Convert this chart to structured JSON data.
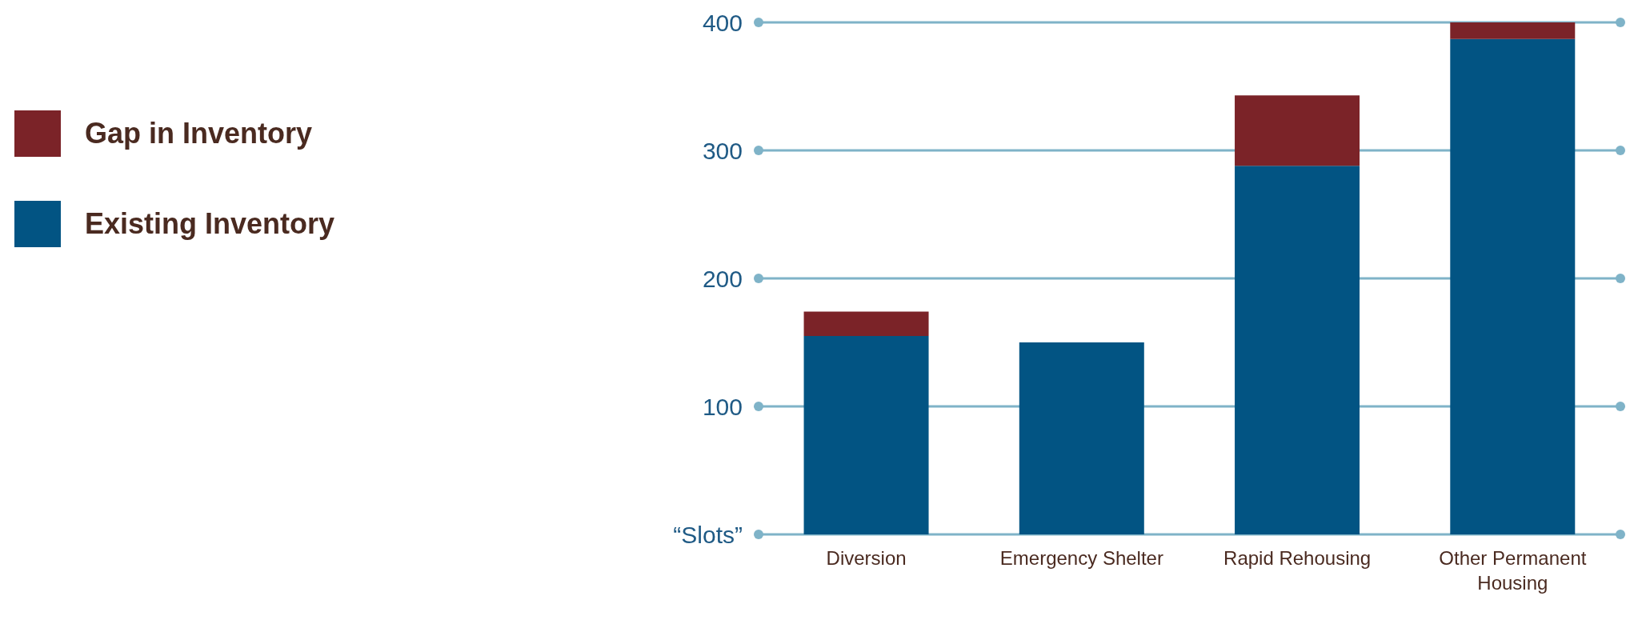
{
  "chart_data": {
    "type": "bar",
    "stacked": true,
    "categories": [
      "Diversion",
      "Emergency Shelter",
      "Rapid Rehousing",
      "Other Permanent Housing"
    ],
    "series": [
      {
        "name": "Existing Inventory",
        "color": "#025483",
        "values": [
          155,
          150,
          288,
          387
        ]
      },
      {
        "name": "Gap in Inventory",
        "color": "#7b2328",
        "values": [
          19,
          0,
          55,
          13
        ]
      }
    ],
    "ylim": [
      0,
      400
    ],
    "yticks": [
      {
        "value": 0,
        "label": "“Slots”"
      },
      100,
      200,
      300,
      400
    ],
    "grid": "y",
    "legend": "left"
  }
}
